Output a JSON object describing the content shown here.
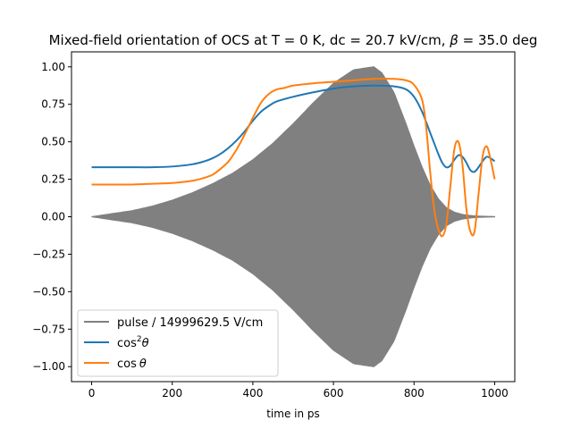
{
  "chart_data": {
    "type": "line",
    "title": "Mixed-field orientation of OCS at T = 0 K, dc = 20.7 kV/cm, β = 35.0 deg",
    "title_parts": {
      "prefix": "Mixed-field orientation of OCS at T = 0 K, dc = 20.7 kV/cm, ",
      "symbol": "β",
      "suffix": " = 35.0 deg"
    },
    "xlabel": "time in ps",
    "ylabel": "",
    "xlim": [
      -50,
      1050
    ],
    "ylim": [
      -1.1,
      1.1
    ],
    "x_ticks": [
      "0",
      "200",
      "400",
      "600",
      "800",
      "1000"
    ],
    "y_ticks": [
      "−1.00",
      "−0.75",
      "−0.50",
      "−0.25",
      "0.00",
      "0.25",
      "0.50",
      "0.75",
      "1.00"
    ],
    "grid": false,
    "legend_position": "lower-left",
    "legend": {
      "pulse": "pulse / 14999629.5 V/cm",
      "cos2_base": "cos",
      "cos2_sup": "2",
      "cos_base": "cos",
      "theta": "θ"
    },
    "series": [
      {
        "key": "pulse",
        "color": "#808080",
        "style": "oscillating envelope (filled)",
        "envelope_x": [
          0,
          50,
          100,
          150,
          200,
          250,
          300,
          350,
          400,
          450,
          500,
          550,
          600,
          650,
          700,
          720,
          750,
          780,
          800,
          820,
          840,
          860,
          880,
          900,
          920,
          940,
          960,
          980,
          1000
        ],
        "envelope_y": [
          0.0,
          0.02,
          0.04,
          0.07,
          0.11,
          0.16,
          0.22,
          0.29,
          0.38,
          0.49,
          0.62,
          0.76,
          0.89,
          0.98,
          1.0,
          0.96,
          0.83,
          0.62,
          0.47,
          0.33,
          0.21,
          0.12,
          0.06,
          0.03,
          0.015,
          0.008,
          0.004,
          0.002,
          0.001
        ]
      },
      {
        "key": "cos2",
        "color": "#1f77b4",
        "x": [
          0,
          50,
          100,
          150,
          200,
          250,
          280,
          300,
          320,
          340,
          360,
          380,
          400,
          420,
          440,
          460,
          500,
          550,
          600,
          650,
          700,
          750,
          780,
          800,
          820,
          840,
          850,
          860,
          870,
          880,
          890,
          900,
          910,
          920,
          930,
          940,
          950,
          960,
          970,
          980,
          990,
          1000
        ],
        "y": [
          0.33,
          0.33,
          0.33,
          0.33,
          0.335,
          0.35,
          0.37,
          0.39,
          0.42,
          0.46,
          0.51,
          0.57,
          0.64,
          0.7,
          0.74,
          0.77,
          0.8,
          0.83,
          0.855,
          0.87,
          0.875,
          0.87,
          0.85,
          0.8,
          0.7,
          0.56,
          0.49,
          0.42,
          0.36,
          0.33,
          0.34,
          0.38,
          0.41,
          0.4,
          0.36,
          0.31,
          0.3,
          0.33,
          0.37,
          0.4,
          0.39,
          0.37
        ]
      },
      {
        "key": "cos",
        "color": "#ff7f0e",
        "x": [
          0,
          50,
          100,
          150,
          200,
          250,
          280,
          300,
          320,
          340,
          360,
          380,
          400,
          420,
          440,
          460,
          480,
          500,
          550,
          600,
          650,
          700,
          750,
          780,
          800,
          820,
          830,
          840,
          850,
          860,
          870,
          880,
          890,
          900,
          910,
          920,
          930,
          940,
          950,
          960,
          970,
          980,
          990,
          1000
        ],
        "y": [
          0.215,
          0.215,
          0.215,
          0.22,
          0.225,
          0.24,
          0.26,
          0.28,
          0.32,
          0.37,
          0.45,
          0.55,
          0.66,
          0.76,
          0.82,
          0.85,
          0.86,
          0.875,
          0.89,
          0.9,
          0.91,
          0.92,
          0.92,
          0.91,
          0.88,
          0.78,
          0.6,
          0.3,
          0.05,
          -0.08,
          -0.13,
          -0.05,
          0.2,
          0.45,
          0.5,
          0.35,
          0.05,
          -0.1,
          -0.1,
          0.15,
          0.4,
          0.47,
          0.38,
          0.25
        ]
      }
    ]
  }
}
